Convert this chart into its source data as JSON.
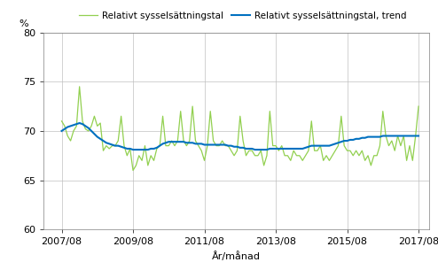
{
  "title": "",
  "xlabel": "År/månad",
  "ylabel": "%",
  "ylim": [
    60,
    80
  ],
  "yticks": [
    60,
    65,
    70,
    75,
    80
  ],
  "xtick_labels": [
    "2007/08",
    "2009/08",
    "2011/08",
    "2013/08",
    "2015/08",
    "2017/08"
  ],
  "legend_labels": [
    "Relativt sysselsättningstal",
    "Relativt sysselsättningstal, trend"
  ],
  "line_color_raw": "#92d050",
  "line_color_trend": "#0070c0",
  "background_color": "#ffffff",
  "grid_color": "#c0c0c0",
  "raw_values": [
    71.0,
    70.5,
    69.5,
    69.0,
    70.0,
    70.5,
    74.5,
    71.0,
    70.2,
    70.0,
    70.5,
    71.5,
    70.5,
    70.8,
    68.0,
    68.5,
    68.2,
    68.5,
    68.5,
    69.0,
    71.5,
    68.5,
    67.5,
    68.2,
    66.0,
    66.5,
    67.5,
    67.0,
    68.5,
    66.5,
    67.5,
    67.0,
    68.2,
    68.5,
    71.5,
    68.5,
    68.5,
    69.0,
    68.5,
    69.0,
    72.0,
    69.0,
    68.5,
    69.0,
    72.5,
    69.0,
    68.5,
    68.0,
    67.0,
    68.5,
    72.0,
    69.0,
    68.5,
    68.5,
    69.0,
    68.5,
    68.5,
    68.0,
    67.5,
    68.0,
    71.5,
    69.0,
    67.5,
    68.0,
    68.0,
    67.5,
    67.5,
    68.0,
    66.5,
    67.5,
    72.0,
    68.5,
    68.5,
    68.0,
    68.5,
    67.5,
    67.5,
    67.0,
    68.0,
    67.5,
    67.5,
    67.0,
    67.5,
    68.0,
    71.0,
    68.0,
    68.0,
    68.5,
    67.0,
    67.5,
    67.0,
    67.5,
    68.0,
    68.5,
    71.5,
    68.5,
    68.0,
    68.0,
    67.5,
    68.0,
    67.5,
    68.0,
    67.0,
    67.5,
    66.5,
    67.5,
    67.5,
    68.5,
    72.0,
    69.5,
    68.5,
    69.0,
    68.0,
    69.5,
    68.5,
    69.5,
    67.0,
    68.5,
    67.0,
    69.5,
    72.5
  ],
  "trend_values": [
    70.0,
    70.2,
    70.4,
    70.5,
    70.6,
    70.7,
    70.8,
    70.7,
    70.5,
    70.3,
    70.0,
    69.7,
    69.4,
    69.2,
    69.0,
    68.8,
    68.7,
    68.6,
    68.5,
    68.5,
    68.4,
    68.3,
    68.2,
    68.2,
    68.1,
    68.1,
    68.1,
    68.1,
    68.1,
    68.1,
    68.2,
    68.2,
    68.3,
    68.5,
    68.7,
    68.8,
    68.9,
    68.9,
    68.9,
    68.9,
    68.9,
    68.9,
    68.8,
    68.8,
    68.8,
    68.7,
    68.7,
    68.7,
    68.6,
    68.6,
    68.6,
    68.6,
    68.6,
    68.6,
    68.6,
    68.6,
    68.5,
    68.5,
    68.4,
    68.4,
    68.3,
    68.3,
    68.2,
    68.2,
    68.2,
    68.1,
    68.1,
    68.1,
    68.1,
    68.1,
    68.2,
    68.2,
    68.2,
    68.2,
    68.2,
    68.2,
    68.2,
    68.2,
    68.2,
    68.2,
    68.2,
    68.2,
    68.3,
    68.4,
    68.5,
    68.5,
    68.5,
    68.5,
    68.5,
    68.5,
    68.5,
    68.6,
    68.7,
    68.8,
    68.9,
    69.0,
    69.0,
    69.1,
    69.1,
    69.2,
    69.2,
    69.3,
    69.3,
    69.4,
    69.4,
    69.4,
    69.4,
    69.4,
    69.5,
    69.5,
    69.5,
    69.5,
    69.5,
    69.5,
    69.5,
    69.5,
    69.5,
    69.5,
    69.5,
    69.5,
    69.5
  ]
}
